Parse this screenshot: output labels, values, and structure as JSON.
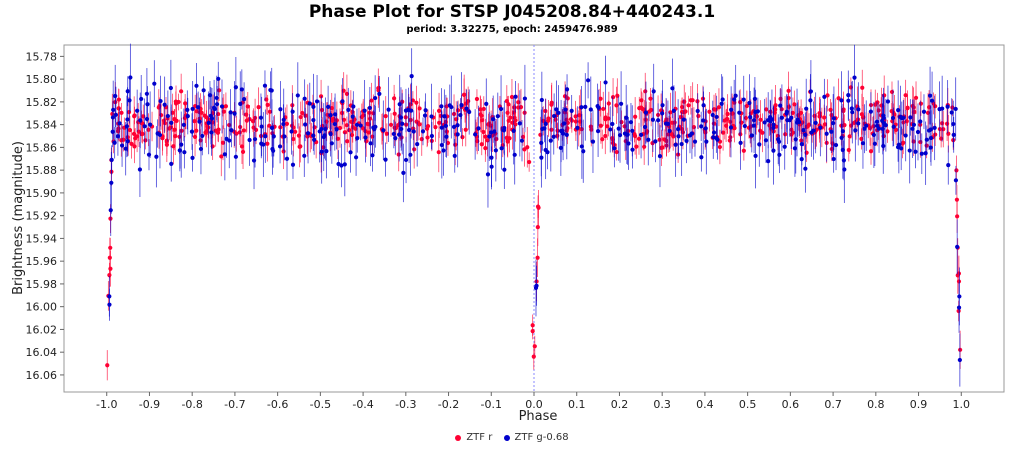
{
  "chart_data": {
    "type": "scatter",
    "title": "Phase Plot for STSP J045208.84+440243.1",
    "subtitle": "period: 3.32275, epoch: 2459476.989",
    "xlabel": "Phase",
    "ylabel": "Brightness (magnitude)",
    "xlim": [
      -1.1,
      1.1
    ],
    "ylim": [
      16.075,
      15.77
    ],
    "y_inverted": true,
    "x_ticks": [
      "-1.0",
      "-0.9",
      "-0.8",
      "-0.7",
      "-0.6",
      "-0.5",
      "-0.4",
      "-0.3",
      "-0.2",
      "-0.1",
      "0.0",
      "0.1",
      "0.2",
      "0.3",
      "0.4",
      "0.5",
      "0.6",
      "0.7",
      "0.8",
      "0.9",
      "1.0"
    ],
    "y_ticks": [
      "15.78",
      "15.80",
      "15.82",
      "15.84",
      "15.86",
      "15.88",
      "15.90",
      "15.92",
      "15.94",
      "15.96",
      "15.98",
      "16.00",
      "16.02",
      "16.04",
      "16.06"
    ],
    "reference_line_x": 0.0,
    "grid": false,
    "legend_position": "bottom-center",
    "background": "#ffffff",
    "series": [
      {
        "name": "ZTF r",
        "color": "#ff0033",
        "baseline_mag": 15.838,
        "scatter": 0.012,
        "error": 0.012,
        "eclipse": {
          "center": 0.0,
          "depth_mag": 16.055,
          "half_width": 0.012
        },
        "points_per_unit_phase": 320
      },
      {
        "name": "ZTF g-0.68",
        "color": "#0000cc",
        "baseline_mag": 15.842,
        "scatter": 0.018,
        "error": 0.02,
        "eclipse": {
          "center": 0.0,
          "depth_mag": 16.06,
          "half_width": 0.012
        },
        "points_per_unit_phase": 220
      }
    ]
  }
}
